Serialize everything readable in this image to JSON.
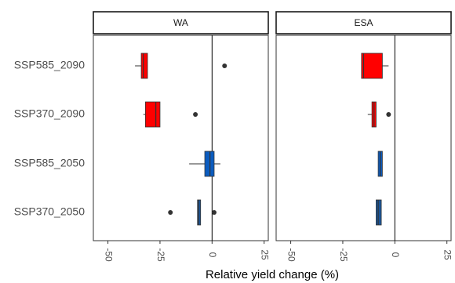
{
  "chart_data": {
    "type": "boxplot",
    "orientation": "horizontal",
    "xlabel": "Relative yield change (%)",
    "xlim": [
      -57,
      27
    ],
    "xticks": [
      -50,
      -25,
      0,
      25
    ],
    "xtick_labels": [
      "-50",
      "-25",
      "0",
      "25"
    ],
    "categories": [
      "SSP585_2090",
      "SSP370_2090",
      "SSP585_2050",
      "SSP370_2050"
    ],
    "category_colors": {
      "SSP585_2090": "#ff0000",
      "SSP370_2090": "#ff0000",
      "SSP585_2050": "#0b5cbf",
      "SSP370_2050": "#1a5599"
    },
    "reference_line_x": 0,
    "grid": false,
    "legend": "none",
    "panels": [
      {
        "label": "WA",
        "boxes": [
          {
            "category": "SSP585_2090",
            "whisker_low": -37,
            "q1": -34,
            "median": -33,
            "q3": -31,
            "whisker_high": -31,
            "outliers": [
              6
            ]
          },
          {
            "category": "SSP370_2090",
            "whisker_low": -33,
            "q1": -32,
            "median": -27,
            "q3": -25,
            "whisker_high": -25,
            "outliers": [
              -8
            ]
          },
          {
            "category": "SSP585_2050",
            "whisker_low": -11,
            "q1": -3.5,
            "median": -1,
            "q3": 1,
            "whisker_high": 4,
            "outliers": []
          },
          {
            "category": "SSP370_2050",
            "whisker_low": -7,
            "q1": -7,
            "median": -6.5,
            "q3": -5.5,
            "whisker_high": -5.5,
            "outliers": [
              -20,
              1
            ]
          }
        ]
      },
      {
        "label": "ESA",
        "boxes": [
          {
            "category": "SSP585_2090",
            "whisker_low": -16,
            "q1": -16,
            "median": -15,
            "q3": -6,
            "whisker_high": -3,
            "outliers": []
          },
          {
            "category": "SSP370_2090",
            "whisker_low": -13,
            "q1": -11,
            "median": -10,
            "q3": -9,
            "whisker_high": -9,
            "outliers": [
              -3
            ]
          },
          {
            "category": "SSP585_2050",
            "whisker_low": -8,
            "q1": -8,
            "median": -7,
            "q3": -6,
            "whisker_high": -6,
            "outliers": []
          },
          {
            "category": "SSP370_2050",
            "whisker_low": -9,
            "q1": -9,
            "median": -8,
            "q3": -6.5,
            "whisker_high": -6.5,
            "outliers": []
          }
        ]
      }
    ]
  }
}
